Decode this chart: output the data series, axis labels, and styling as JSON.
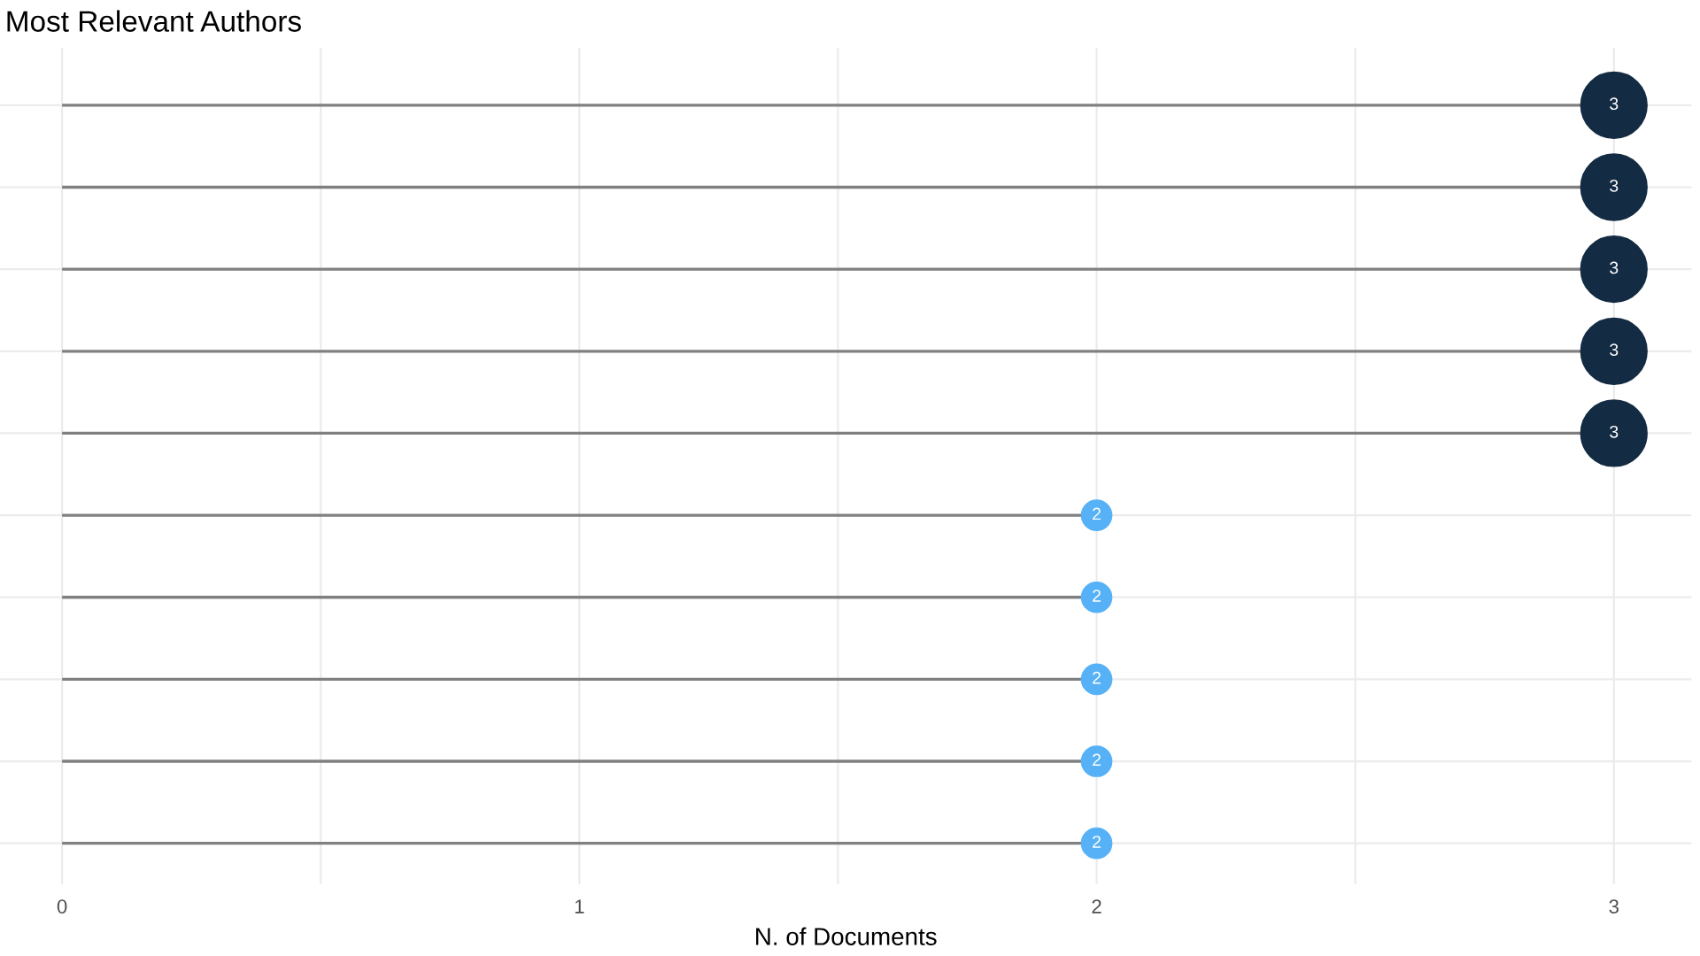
{
  "chart_data": {
    "type": "lollipop",
    "orientation": "horizontal",
    "title": "Most Relevant Authors",
    "xlabel": "N. of Documents",
    "categories": [
      null,
      null,
      null,
      null,
      null,
      null,
      null,
      null,
      null,
      null
    ],
    "values": [
      3,
      3,
      3,
      3,
      3,
      2,
      2,
      2,
      2,
      2
    ],
    "sizes": [
      1,
      1,
      1,
      1,
      1,
      0.2,
      0.2,
      0.2,
      0.2,
      0.2
    ],
    "colors": [
      "#132b43",
      "#132b43",
      "#132b43",
      "#132b43",
      "#132b43",
      "#56b1f7",
      "#56b1f7",
      "#56b1f7",
      "#56b1f7",
      "#56b1f7"
    ],
    "xlim": [
      -0.12,
      3.15
    ],
    "xticks": [
      0,
      {
        "value": 0.5,
        "label": null
      },
      1,
      {
        "value": 1.5,
        "label": null
      },
      2,
      {
        "value": 2.5,
        "label": null
      },
      3
    ],
    "data_labels": true,
    "grid": true,
    "marker": "circle"
  }
}
